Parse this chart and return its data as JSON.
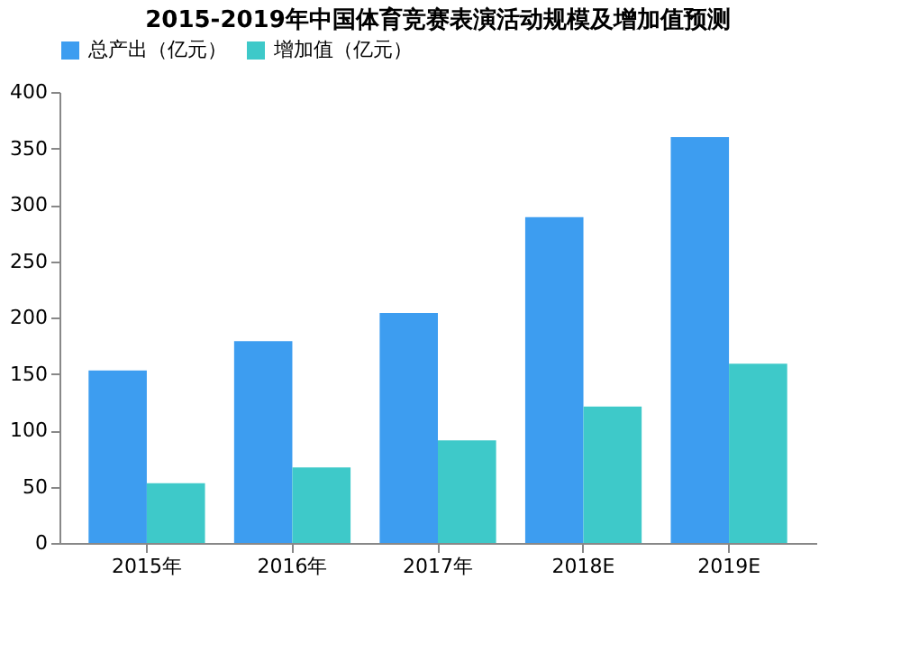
{
  "chart_data": {
    "type": "bar",
    "title": "2015-2019年中国体育竞赛表演活动规模及增加值预测",
    "categories": [
      "2015年",
      "2016年",
      "2017年",
      "2018E",
      "2019E"
    ],
    "series": [
      {
        "name": "总产出（亿元）",
        "color": "#3d9df0",
        "values": [
          153,
          179,
          204,
          289,
          360
        ]
      },
      {
        "name": "增加值（亿元）",
        "color": "#3ec9c9",
        "values": [
          53,
          67,
          91,
          121,
          159
        ]
      }
    ],
    "ylim": [
      0,
      400
    ],
    "yticks": [
      0,
      50,
      100,
      150,
      200,
      250,
      300,
      350,
      400
    ],
    "grid": false,
    "legend": "top"
  }
}
